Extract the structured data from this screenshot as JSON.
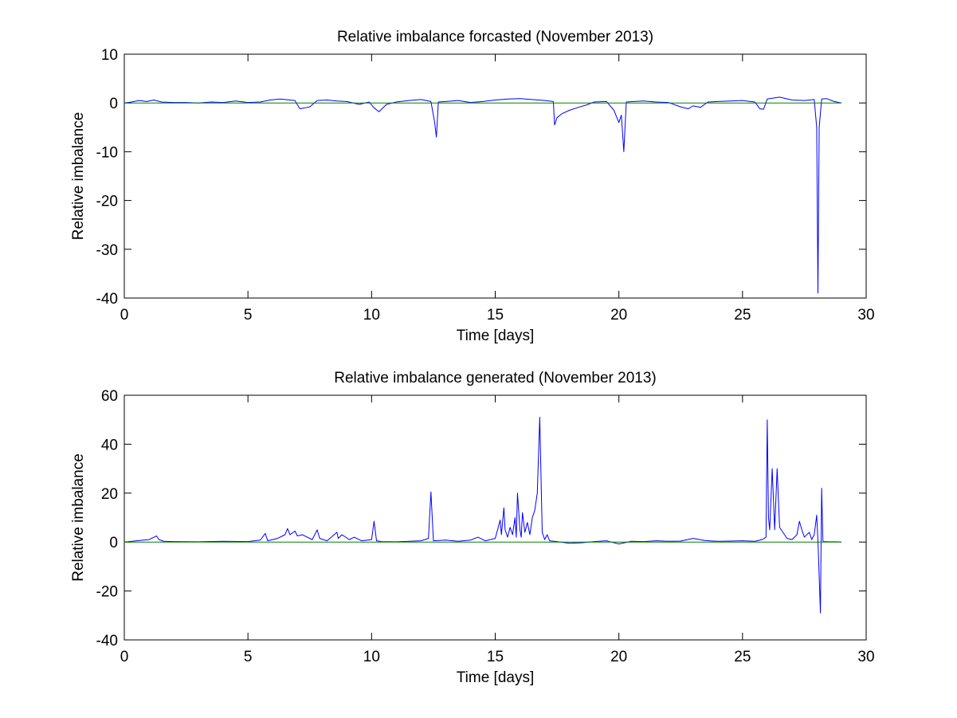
{
  "chart_data": [
    {
      "type": "line",
      "title": "Relative imbalance forcasted (November 2013)",
      "xlabel": "Time [days]",
      "ylabel": "Relative imbalance",
      "xlim": [
        0,
        30
      ],
      "ylim": [
        -40,
        10
      ],
      "xticks": [
        0,
        5,
        10,
        15,
        20,
        25,
        30
      ],
      "yticks": [
        -40,
        -30,
        -20,
        -10,
        0,
        10
      ],
      "grid": false,
      "series": [
        {
          "color": "#0000ff",
          "x": [
            0,
            0.3,
            0.6,
            0.9,
            1.2,
            1.5,
            2.0,
            2.5,
            3.0,
            3.5,
            4.0,
            4.5,
            5.0,
            5.5,
            5.9,
            6.3,
            6.9,
            7.1,
            7.3,
            7.5,
            7.8,
            8.2,
            8.6,
            9.0,
            9.5,
            9.9,
            10.1,
            10.3,
            10.6,
            11.0,
            11.5,
            12.0,
            12.4,
            12.55,
            12.62,
            12.7,
            13.0,
            13.5,
            14.0,
            14.5,
            15.0,
            15.5,
            16.0,
            16.5,
            17.0,
            17.35,
            17.4,
            17.5,
            17.7,
            18.0,
            18.3,
            18.7,
            19.0,
            19.5,
            19.8,
            20.0,
            20.1,
            20.2,
            20.3,
            20.6,
            21.0,
            21.5,
            22.0,
            22.5,
            22.8,
            23.0,
            23.3,
            23.6,
            24.0,
            24.5,
            25.0,
            25.5,
            25.7,
            25.85,
            26.0,
            26.5,
            27.0,
            27.5,
            27.9,
            28.0,
            28.05,
            28.1,
            28.2,
            28.4,
            28.7,
            29.0
          ],
          "values": [
            0,
            0.2,
            0.5,
            0.3,
            0.6,
            0.2,
            0.1,
            0.1,
            0,
            0.2,
            0.1,
            0.4,
            0.1,
            0.2,
            0.6,
            0.8,
            0.5,
            -1.2,
            -1.0,
            -0.8,
            0.5,
            0.6,
            0.4,
            0.3,
            -0.3,
            0.2,
            -1.0,
            -1.8,
            -0.3,
            0.2,
            0.5,
            0.7,
            0.3,
            -4.0,
            -7.0,
            0.2,
            0.3,
            0.5,
            0.1,
            0.3,
            0.6,
            0.8,
            0.9,
            0.7,
            0.5,
            0.3,
            -4.5,
            -3.0,
            -2.2,
            -1.5,
            -1.0,
            -0.4,
            0.2,
            0.3,
            -1.5,
            -4.0,
            -2.5,
            -10.0,
            0.2,
            0.3,
            0.4,
            0.2,
            0.1,
            -0.8,
            -1.2,
            -0.6,
            -0.9,
            0.2,
            0.3,
            0.4,
            0.5,
            0.2,
            -1.2,
            -1.3,
            0.8,
            1.2,
            0.6,
            0.5,
            0.7,
            -5.0,
            -39.0,
            -5.0,
            0.8,
            0.9,
            0.3,
            0
          ]
        },
        {
          "color": "#008000",
          "x": [
            0,
            29
          ],
          "values": [
            0,
            0
          ]
        }
      ]
    },
    {
      "type": "line",
      "title": "Relative imbalance generated (November 2013)",
      "xlabel": "Time [days]",
      "ylabel": "Relative imbalance",
      "xlim": [
        0,
        30
      ],
      "ylim": [
        -40,
        60
      ],
      "xticks": [
        0,
        5,
        10,
        15,
        20,
        25,
        30
      ],
      "yticks": [
        -40,
        -20,
        0,
        20,
        40,
        60
      ],
      "grid": false,
      "series": [
        {
          "color": "#0000ff",
          "x": [
            0,
            0.5,
            1.0,
            1.3,
            1.4,
            1.6,
            2.0,
            3.0,
            4.0,
            5.0,
            5.5,
            5.7,
            5.8,
            6.2,
            6.5,
            6.6,
            6.7,
            6.9,
            7.0,
            7.2,
            7.6,
            7.8,
            7.9,
            8.2,
            8.6,
            8.65,
            8.8,
            9.1,
            9.3,
            9.6,
            10.0,
            10.1,
            10.2,
            10.4,
            11.0,
            11.5,
            12.0,
            12.3,
            12.4,
            12.5,
            13.0,
            13.5,
            14.0,
            14.3,
            14.6,
            15.0,
            15.2,
            15.25,
            15.35,
            15.4,
            15.5,
            15.6,
            15.7,
            15.8,
            15.85,
            15.9,
            16.0,
            16.05,
            16.1,
            16.2,
            16.3,
            16.4,
            16.5,
            16.6,
            16.7,
            16.8,
            16.9,
            17.0,
            17.1,
            17.2,
            17.5,
            18.0,
            18.5,
            19.0,
            19.5,
            20.0,
            20.5,
            21.0,
            21.5,
            22.0,
            22.5,
            23.0,
            23.5,
            24.0,
            24.5,
            25.0,
            25.5,
            25.8,
            25.95,
            26.0,
            26.05,
            26.1,
            26.2,
            26.3,
            26.4,
            26.5,
            26.8,
            27.0,
            27.2,
            27.3,
            27.4,
            27.5,
            27.7,
            27.8,
            27.9,
            28.0,
            28.05,
            28.1,
            28.15,
            28.2,
            28.25,
            28.3,
            28.5,
            28.8,
            29.0
          ],
          "values": [
            0,
            0.5,
            1.0,
            2.5,
            1.0,
            0.3,
            0.2,
            0.1,
            0.3,
            0.2,
            0.8,
            3.5,
            0.5,
            1.5,
            3.0,
            5.5,
            3.0,
            4.5,
            2.5,
            3.0,
            1.0,
            5.0,
            1.5,
            0.5,
            4.0,
            1.5,
            3.0,
            1.0,
            2.0,
            0.5,
            1.0,
            8.5,
            0.5,
            0.2,
            0.1,
            0.3,
            0.5,
            1.5,
            20.5,
            0.5,
            0.8,
            0.3,
            0.8,
            2.0,
            0.5,
            1.5,
            9.0,
            3.0,
            14.0,
            5.0,
            2.0,
            6.0,
            3.0,
            10.0,
            2.0,
            20.0,
            5.0,
            2.0,
            12.0,
            4.0,
            8.0,
            3.0,
            10.0,
            13.0,
            20.0,
            51.0,
            4.0,
            1.0,
            3.0,
            0.5,
            0.2,
            -0.5,
            -0.3,
            0.2,
            0.5,
            -0.8,
            0.3,
            0.2,
            0.5,
            0.3,
            0.4,
            1.5,
            0.6,
            0.3,
            0.4,
            0.5,
            0.3,
            1.0,
            2.0,
            50.0,
            10.0,
            5.0,
            30.0,
            5.0,
            30.0,
            6.0,
            1.5,
            1.0,
            3.0,
            8.5,
            5.0,
            2.0,
            4.0,
            1.0,
            3.0,
            11.0,
            0.5,
            -14.0,
            -29.0,
            22.0,
            0.5,
            0.2,
            0.1,
            0.1,
            0
          ]
        },
        {
          "color": "#008000",
          "x": [
            0,
            29
          ],
          "values": [
            0,
            0
          ]
        }
      ]
    }
  ]
}
